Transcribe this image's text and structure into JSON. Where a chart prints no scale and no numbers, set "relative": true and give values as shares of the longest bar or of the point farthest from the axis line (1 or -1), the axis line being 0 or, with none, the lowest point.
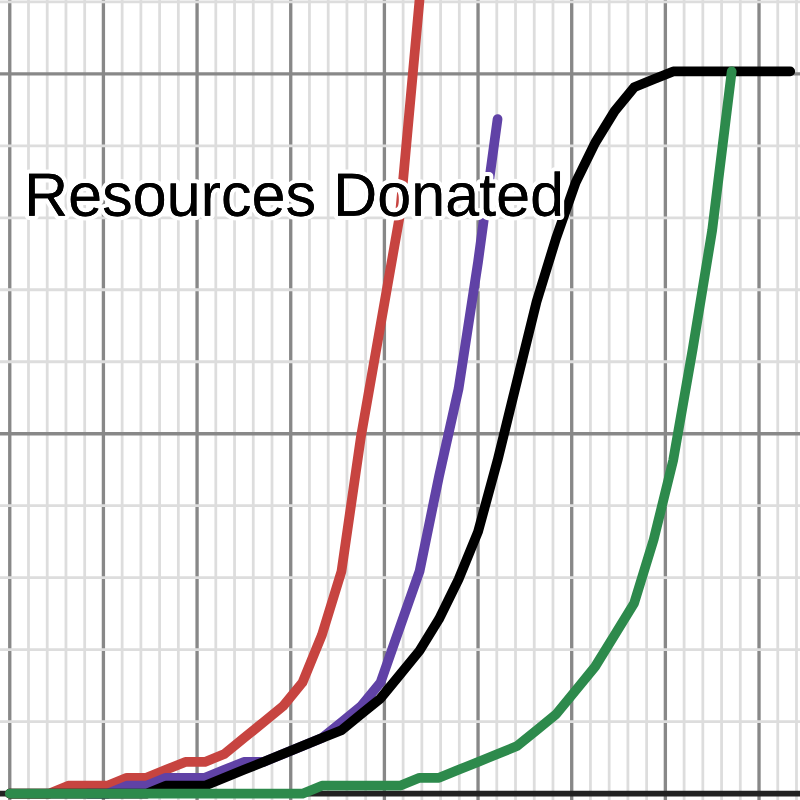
{
  "chart_data": {
    "type": "line",
    "relative": true,
    "grid": true,
    "tick_labels": false,
    "marker": "none",
    "line_style": "solid",
    "categories": [
      null,
      null,
      null,
      null,
      null,
      null,
      null,
      null,
      null,
      null,
      null,
      null,
      null,
      null,
      null,
      null,
      null,
      null,
      null,
      null,
      null,
      null,
      null,
      null,
      null,
      null,
      null,
      null,
      null,
      null,
      null,
      null,
      null,
      null,
      null,
      null,
      null,
      null,
      null,
      null,
      null
    ],
    "annotations": [
      "Resources Donated"
    ],
    "series": [
      {
        "color": "#c74440",
        "values": [
          0,
          0,
          0,
          0.01,
          0.01,
          0.01,
          0.02,
          0.02,
          0.03,
          0.04,
          0.04,
          0.05,
          0.07,
          0.09,
          0.11,
          0.14,
          0.2,
          0.28,
          0.45,
          0.59,
          0.73,
          1,
          null,
          null,
          null,
          null,
          null,
          null,
          null,
          null,
          null,
          null,
          null,
          null,
          null,
          null,
          null,
          null,
          null,
          null,
          null
        ]
      },
      {
        "color": "#6042a6",
        "values": [
          null,
          null,
          null,
          null,
          0,
          0,
          0.01,
          0.01,
          0.02,
          0.02,
          0.02,
          0.03,
          0.04,
          0.04,
          0.05,
          0.06,
          0.07,
          0.09,
          0.11,
          0.14,
          0.21,
          0.28,
          0.4,
          0.51,
          0.67,
          0.85,
          null,
          null,
          null,
          null,
          null,
          null,
          null,
          null,
          null,
          null,
          null,
          null,
          null,
          null,
          null
        ]
      },
      {
        "color": "#000000",
        "values": [
          0,
          0,
          0,
          0,
          0,
          0,
          0,
          0,
          0.01,
          0.01,
          0.01,
          0.02,
          0.03,
          0.04,
          0.05,
          0.06,
          0.07,
          0.08,
          0.1,
          0.12,
          0.15,
          0.18,
          0.22,
          0.27,
          0.33,
          0.42,
          0.52,
          0.62,
          0.7,
          0.77,
          0.82,
          0.86,
          0.89,
          0.9,
          0.91,
          0.91,
          0.91,
          0.91,
          0.91,
          0.91,
          0.91
        ]
      },
      {
        "color": "#2d8a4c",
        "values": [
          0,
          0,
          0,
          0,
          0,
          0,
          0,
          0,
          0,
          0,
          0,
          0,
          0,
          0,
          0,
          0,
          0.01,
          0.01,
          0.01,
          0.01,
          0.01,
          0.02,
          0.02,
          0.03,
          0.04,
          0.05,
          0.06,
          0.08,
          0.1,
          0.13,
          0.16,
          0.2,
          0.24,
          0.32,
          0.42,
          0.56,
          0.71,
          0.91,
          null,
          null,
          null
        ]
      }
    ]
  }
}
